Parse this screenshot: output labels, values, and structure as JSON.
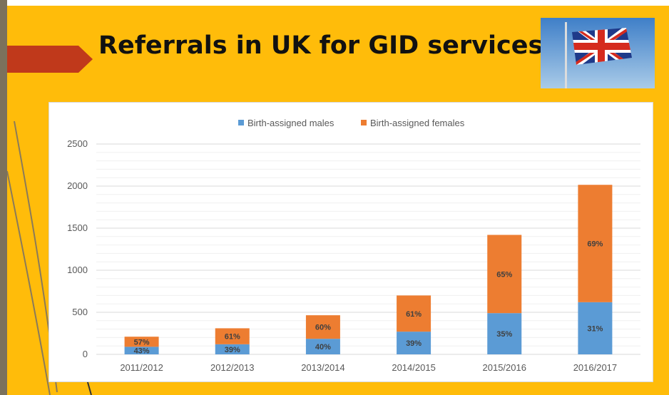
{
  "slide": {
    "title": "Referrals in UK for GID services"
  },
  "colors": {
    "background": "#ffbc0a",
    "side_bar": "#7b715c",
    "arrow": "#c0391b",
    "males": "#5b9bd5",
    "females": "#ed7d31"
  },
  "icons": {
    "title_arrow": "arrow-right-banner",
    "photo": "union-flag-photo"
  },
  "chart_data": {
    "type": "bar",
    "stacked": true,
    "title": "",
    "xlabel": "",
    "ylabel": "",
    "categories": [
      "2011/2012",
      "2012/2013",
      "2013/2014",
      "2014/2015",
      "2015/2016",
      "2016/2017"
    ],
    "series": [
      {
        "name": "Birth-assigned males",
        "color": "#5b9bd5",
        "values": [
          90,
          120,
          185,
          270,
          490,
          620
        ],
        "labels": [
          "43%",
          "39%",
          "40%",
          "39%",
          "35%",
          "31%"
        ]
      },
      {
        "name": "Birth-assigned females",
        "color": "#ed7d31",
        "values": [
          120,
          190,
          280,
          430,
          930,
          1395
        ],
        "labels": [
          "57%",
          "61%",
          "60%",
          "61%",
          "65%",
          "69%"
        ]
      }
    ],
    "ylim": [
      0,
      2500
    ],
    "yticks": [
      "0",
      "500",
      "1000",
      "1500",
      "2000",
      "2500"
    ],
    "ytick_values": [
      0,
      500,
      1000,
      1500,
      2000,
      2500
    ],
    "grid": true,
    "legend_position": "top"
  }
}
